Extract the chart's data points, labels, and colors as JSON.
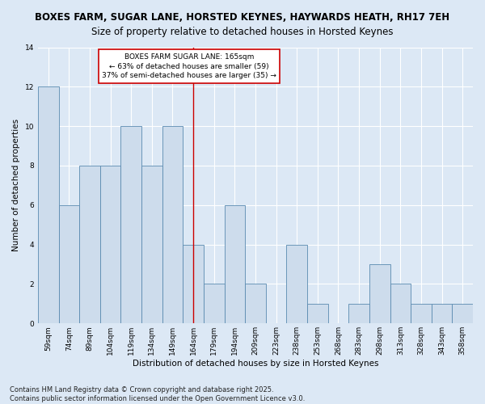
{
  "title": "BOXES FARM, SUGAR LANE, HORSTED KEYNES, HAYWARDS HEATH, RH17 7EH",
  "subtitle": "Size of property relative to detached houses in Horsted Keynes",
  "xlabel": "Distribution of detached houses by size in Horsted Keynes",
  "ylabel": "Number of detached properties",
  "categories": [
    "59sqm",
    "74sqm",
    "89sqm",
    "104sqm",
    "119sqm",
    "134sqm",
    "149sqm",
    "164sqm",
    "179sqm",
    "194sqm",
    "209sqm",
    "223sqm",
    "238sqm",
    "253sqm",
    "268sqm",
    "283sqm",
    "298sqm",
    "313sqm",
    "328sqm",
    "343sqm",
    "358sqm"
  ],
  "values": [
    12,
    6,
    8,
    8,
    10,
    8,
    10,
    4,
    2,
    6,
    2,
    0,
    4,
    1,
    0,
    1,
    3,
    2,
    1,
    1,
    1
  ],
  "bar_color": "#cddcec",
  "bar_edge_color": "#5a8ab0",
  "highlight_index": 7,
  "highlight_line_color": "#cc0000",
  "annotation_text": "BOXES FARM SUGAR LANE: 165sqm\n← 63% of detached houses are smaller (59)\n37% of semi-detached houses are larger (35) →",
  "annotation_box_facecolor": "#ffffff",
  "annotation_box_edgecolor": "#cc0000",
  "ylim": [
    0,
    14
  ],
  "yticks": [
    0,
    2,
    4,
    6,
    8,
    10,
    12,
    14
  ],
  "footnote": "Contains HM Land Registry data © Crown copyright and database right 2025.\nContains public sector information licensed under the Open Government Licence v3.0.",
  "fig_bg_color": "#dce8f5",
  "plot_bg_color": "#dce8f5",
  "title_fontsize": 8.5,
  "axis_label_fontsize": 7.5,
  "tick_fontsize": 6.5,
  "annotation_fontsize": 6.5,
  "footnote_fontsize": 6.0
}
